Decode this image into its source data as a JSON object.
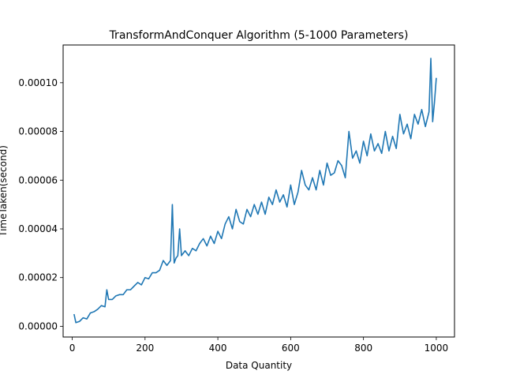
{
  "chart_data": {
    "type": "line",
    "title": "TransformAndConquer Algorithm (5-1000 Parameters)",
    "xlabel": "Data Quantity",
    "ylabel": "TimeTaken(second)",
    "xlim": [
      -25,
      1050
    ],
    "ylim": [
      -4.4e-06,
      0.0001155
    ],
    "xticks": [
      0,
      200,
      400,
      600,
      800,
      1000
    ],
    "xtick_labels": [
      "0",
      "200",
      "400",
      "600",
      "800",
      "1000"
    ],
    "yticks": [
      0,
      2e-05,
      4e-05,
      6e-05,
      8e-05,
      0.0001
    ],
    "ytick_labels": [
      "0.00000",
      "0.00002",
      "0.00004",
      "0.00006",
      "0.00008",
      "0.00010"
    ],
    "grid": false,
    "legend": "none",
    "color": "#1f77b4",
    "series": [
      {
        "x": [
          5,
          10,
          20,
          30,
          40,
          50,
          60,
          70,
          80,
          90,
          95,
          100,
          110,
          120,
          130,
          140,
          150,
          160,
          170,
          180,
          190,
          200,
          210,
          220,
          230,
          240,
          250,
          260,
          270,
          275,
          280,
          285,
          290,
          295,
          300,
          310,
          320,
          330,
          340,
          350,
          360,
          370,
          380,
          390,
          400,
          410,
          420,
          430,
          440,
          450,
          460,
          470,
          480,
          490,
          500,
          510,
          520,
          530,
          540,
          550,
          560,
          570,
          580,
          590,
          600,
          610,
          620,
          630,
          640,
          650,
          660,
          670,
          680,
          690,
          700,
          710,
          720,
          730,
          740,
          750,
          760,
          770,
          780,
          790,
          800,
          810,
          820,
          830,
          840,
          850,
          860,
          870,
          880,
          890,
          900,
          910,
          920,
          930,
          940,
          950,
          960,
          970,
          980,
          985,
          990,
          995,
          1000
        ],
        "y": [
          5e-06,
          1.5e-06,
          2e-06,
          3.5e-06,
          3e-06,
          5.5e-06,
          6e-06,
          7e-06,
          8.5e-06,
          8e-06,
          1.5e-05,
          1.1e-05,
          1.1e-05,
          1.25e-05,
          1.3e-05,
          1.3e-05,
          1.5e-05,
          1.5e-05,
          1.65e-05,
          1.8e-05,
          1.7e-05,
          2e-05,
          1.95e-05,
          2.2e-05,
          2.2e-05,
          2.3e-05,
          2.7e-05,
          2.5e-05,
          2.7e-05,
          5e-05,
          2.6e-05,
          2.8e-05,
          2.9e-05,
          4e-05,
          2.9e-05,
          3.1e-05,
          2.9e-05,
          3.2e-05,
          3.1e-05,
          3.4e-05,
          3.6e-05,
          3.3e-05,
          3.7e-05,
          3.4e-05,
          3.9e-05,
          3.6e-05,
          4.2e-05,
          4.5e-05,
          4e-05,
          4.8e-05,
          4.3e-05,
          4.2e-05,
          4.8e-05,
          4.5e-05,
          5e-05,
          4.6e-05,
          5.1e-05,
          4.6e-05,
          5.3e-05,
          5e-05,
          5.6e-05,
          5.1e-05,
          5.4e-05,
          4.9e-05,
          5.8e-05,
          5e-05,
          5.5e-05,
          6.4e-05,
          5.8e-05,
          5.6e-05,
          6.1e-05,
          5.6e-05,
          6.4e-05,
          5.8e-05,
          6.7e-05,
          6.2e-05,
          6.3e-05,
          6.8e-05,
          6.6e-05,
          6.1e-05,
          8e-05,
          6.9e-05,
          7.2e-05,
          6.7e-05,
          7.6e-05,
          7e-05,
          7.9e-05,
          7.2e-05,
          7.5e-05,
          7.1e-05,
          8e-05,
          7.2e-05,
          7.8e-05,
          7.3e-05,
          8.7e-05,
          7.9e-05,
          8.3e-05,
          7.7e-05,
          8.7e-05,
          8.3e-05,
          8.9e-05,
          8.2e-05,
          8.8e-05,
          0.00011,
          8.4e-05,
          9.2e-05,
          0.000102
        ]
      }
    ]
  }
}
